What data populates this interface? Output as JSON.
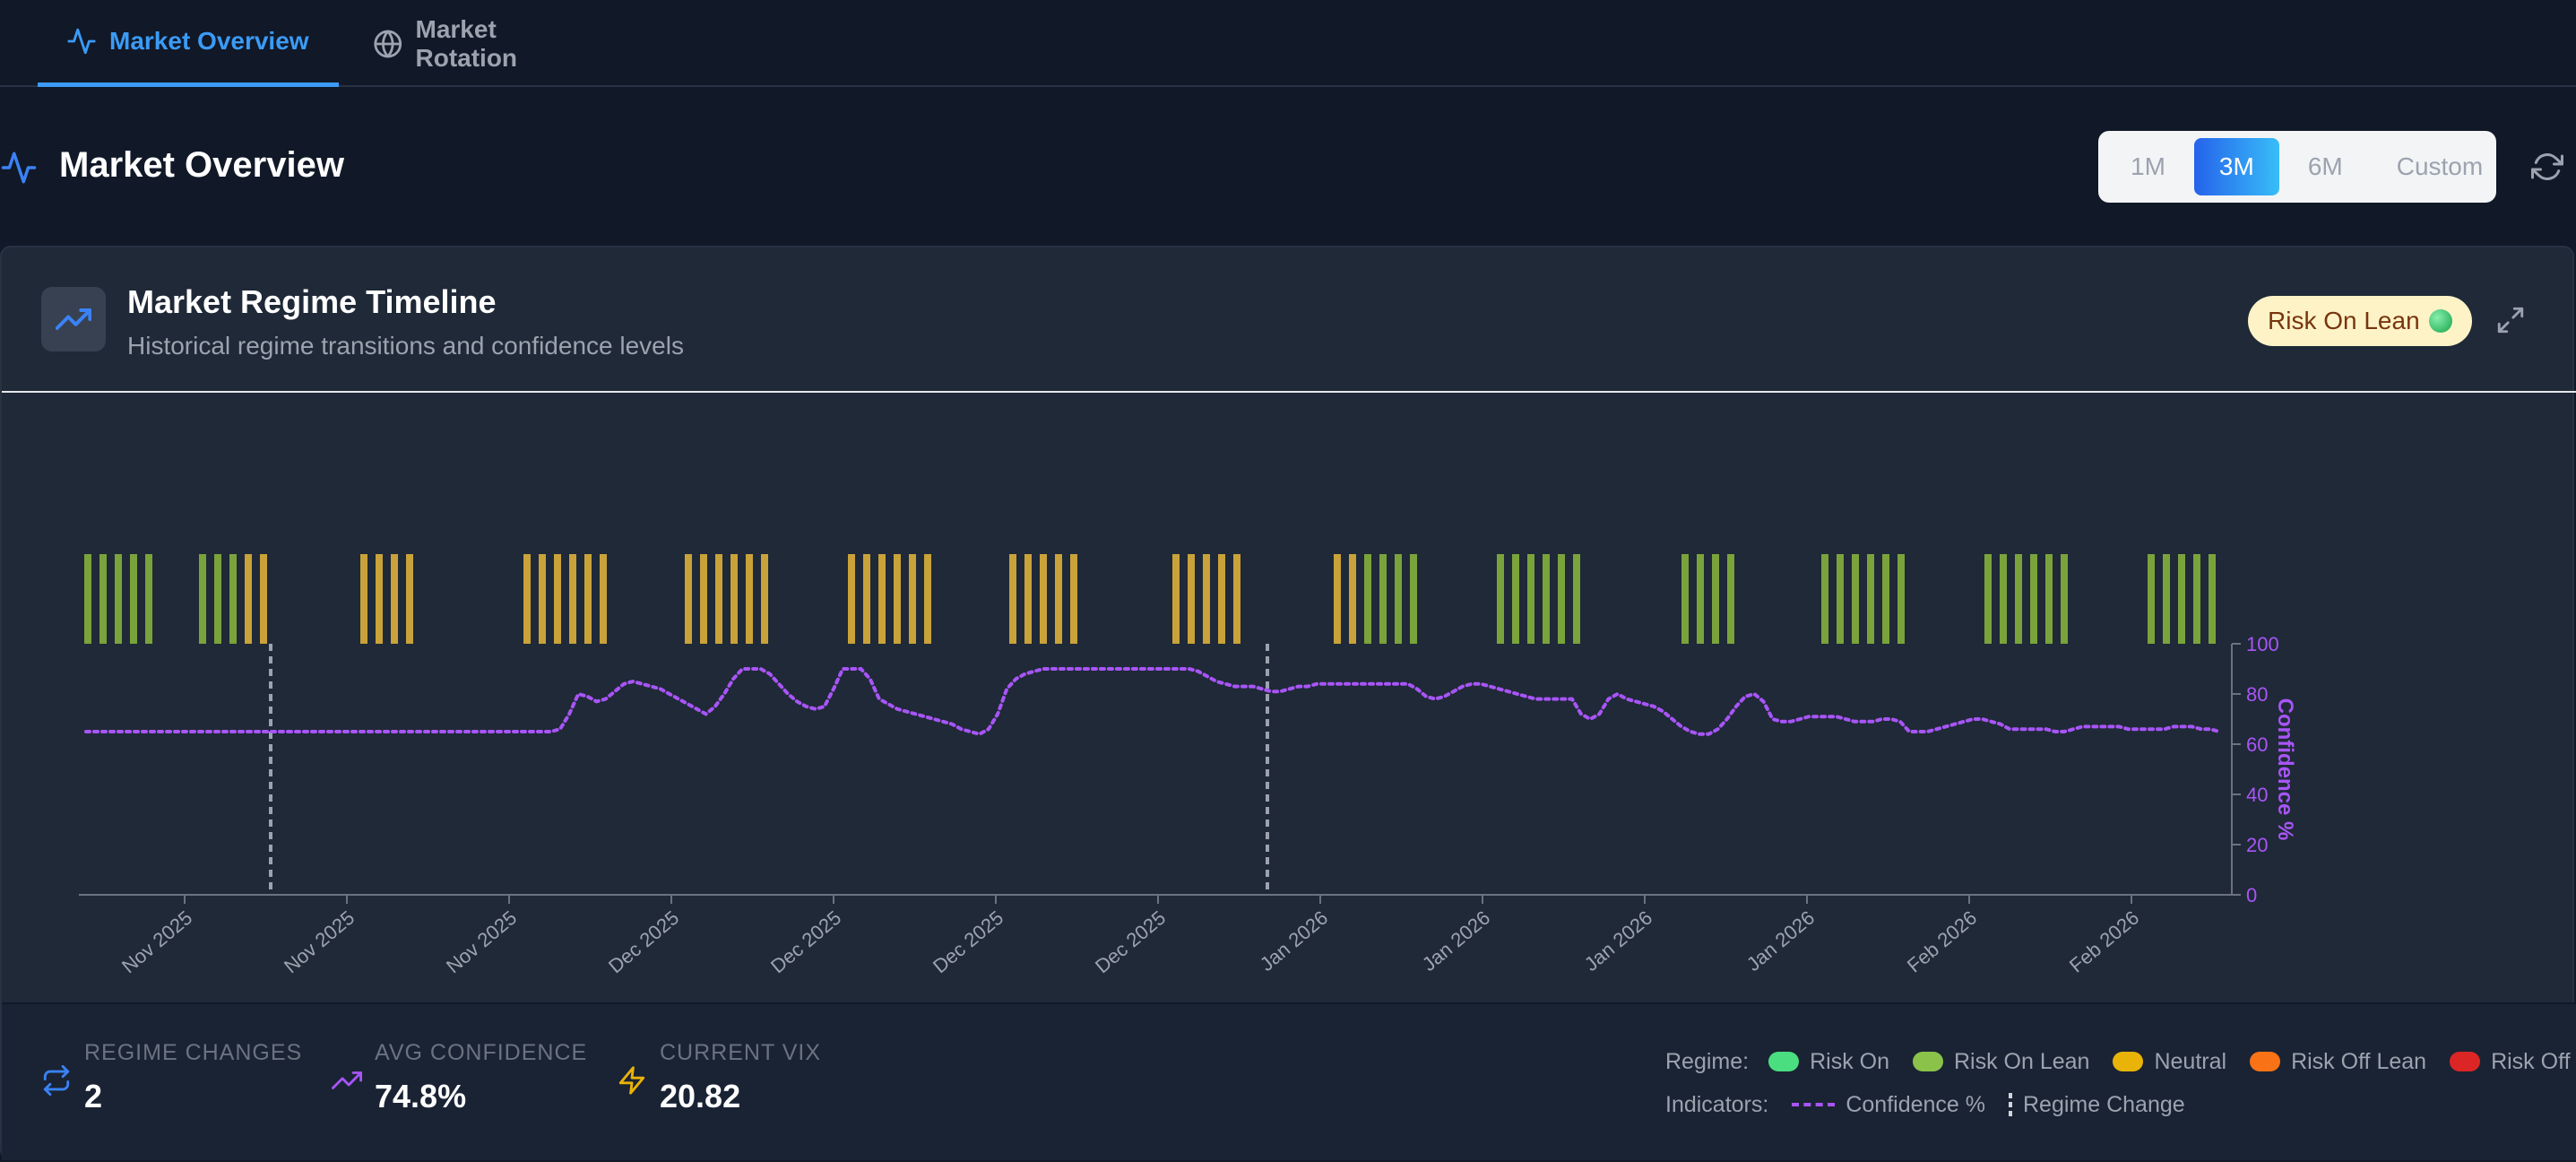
{
  "tabs": [
    {
      "label": "Market Overview",
      "icon": "activity-icon",
      "active": true
    },
    {
      "label": "Market Rotation",
      "icon": "globe-icon",
      "active": false
    }
  ],
  "header": {
    "title": "Market Overview",
    "ranges": [
      "1M",
      "3M",
      "6M",
      "Custom"
    ],
    "active_range": "3M"
  },
  "card": {
    "title": "Market Regime Timeline",
    "subtitle": "Historical regime transitions and confidence levels",
    "badge": "Risk On Lean"
  },
  "colors": {
    "risk_on": "#4ade80",
    "risk_on_lean": "#7cb342",
    "neutral": "#eab308",
    "risk_off_lean": "#f97316",
    "risk_off": "#dc2626",
    "confidence": "#a855f7"
  },
  "chart_data": {
    "type": "line",
    "y_label": "Confidence %",
    "ylim": [
      0,
      100
    ],
    "y_ticks": [
      0,
      20,
      40,
      60,
      80,
      100
    ],
    "x_tick_labels": [
      "Nov 2025",
      "Nov 2025",
      "Nov 2025",
      "Dec 2025",
      "Dec 2025",
      "Dec 2025",
      "Dec 2025",
      "Jan 2026",
      "Jan 2026",
      "Jan 2026",
      "Jan 2026",
      "Feb 2026",
      "Feb 2026"
    ],
    "confidence": [
      65,
      65,
      65,
      65,
      65,
      65,
      65,
      65,
      65,
      65,
      65,
      65,
      65,
      65,
      65,
      65,
      65,
      65,
      65,
      65,
      65,
      65,
      65,
      65,
      65,
      65,
      65,
      65,
      65,
      65,
      65,
      65,
      65,
      65,
      65,
      65,
      65,
      65,
      65,
      65,
      65,
      65,
      65,
      65,
      65,
      65,
      65,
      65,
      65,
      65,
      65,
      65,
      66,
      72,
      80,
      79,
      77,
      78,
      81,
      84,
      85,
      84,
      83,
      82,
      80,
      78,
      76,
      74,
      72,
      75,
      80,
      86,
      90,
      90,
      90,
      88,
      84,
      80,
      77,
      75,
      74,
      75,
      82,
      90,
      90,
      90,
      86,
      78,
      76,
      74,
      73,
      72,
      71,
      70,
      69,
      68,
      66,
      65,
      64,
      66,
      72,
      82,
      86,
      88,
      89,
      90,
      90,
      90,
      90,
      90,
      90,
      90,
      90,
      90,
      90,
      90,
      90,
      90,
      90,
      90,
      90,
      90,
      89,
      87,
      85,
      84,
      83,
      83,
      83,
      82,
      81,
      81,
      82,
      83,
      83,
      84,
      84,
      84,
      84,
      84,
      84,
      84,
      84,
      84,
      84,
      84,
      82,
      79,
      78,
      79,
      81,
      83,
      84,
      84,
      83,
      82,
      81,
      80,
      79,
      78,
      78,
      78,
      78,
      78,
      72,
      70,
      72,
      78,
      80,
      78,
      77,
      76,
      75,
      73,
      70,
      67,
      65,
      64,
      64,
      66,
      70,
      75,
      79,
      80,
      77,
      70,
      69,
      69,
      70,
      71,
      71,
      71,
      71,
      70,
      69,
      69,
      69,
      70,
      70,
      69,
      65,
      65,
      65,
      66,
      67,
      68,
      69,
      70,
      70,
      69,
      68,
      66,
      66,
      66,
      66,
      66,
      65,
      65,
      66,
      67,
      67,
      67,
      67,
      67,
      66,
      66,
      66,
      66,
      66,
      67,
      67,
      67,
      66,
      66,
      65
    ],
    "regime_bars": [
      "rol",
      "rol",
      "rol",
      "rol",
      "rol",
      "rol",
      "rol",
      "rol",
      "n",
      "n",
      "n",
      "n",
      "n",
      "n",
      "n",
      "n",
      "n",
      "n",
      "n",
      "n",
      "n",
      "n",
      "n",
      "n",
      "n",
      "n",
      "n",
      "n",
      "n",
      "n",
      "n",
      "n",
      "n",
      "n",
      "n",
      "n",
      "n",
      "n",
      "n",
      "n",
      "n",
      "n",
      "n",
      "n",
      "rol",
      "rol",
      "rol",
      "rol",
      "rol",
      "rol",
      "rol",
      "rol",
      "rol",
      "rol",
      "rol",
      "rol",
      "rol",
      "rol",
      "rol",
      "rol",
      "rol",
      "rol",
      "rol",
      "rol",
      "rol",
      "rol",
      "rol",
      "rol",
      "rol",
      "rol",
      "rol",
      "rol",
      "rol",
      "rol",
      "rol",
      "rol",
      "rol",
      "rol",
      "rol",
      "rol",
      "rol",
      "rol",
      "rol",
      "rol"
    ],
    "regime_change_marks": 2
  },
  "footer": {
    "stats": [
      {
        "label": "REGIME CHANGES",
        "value": "2",
        "icon": "repeat-icon"
      },
      {
        "label": "AVG CONFIDENCE",
        "value": "74.8%",
        "icon": "trending-up-icon"
      },
      {
        "label": "CURRENT VIX",
        "value": "20.82",
        "icon": "zap-icon"
      }
    ],
    "legend_regime_label": "Regime:",
    "legend_regimes": [
      "Risk On",
      "Risk On Lean",
      "Neutral",
      "Risk Off Lean",
      "Risk Off"
    ],
    "legend_indicators_label": "Indicators:",
    "legend_indicators": [
      "Confidence %",
      "Regime Change"
    ]
  }
}
